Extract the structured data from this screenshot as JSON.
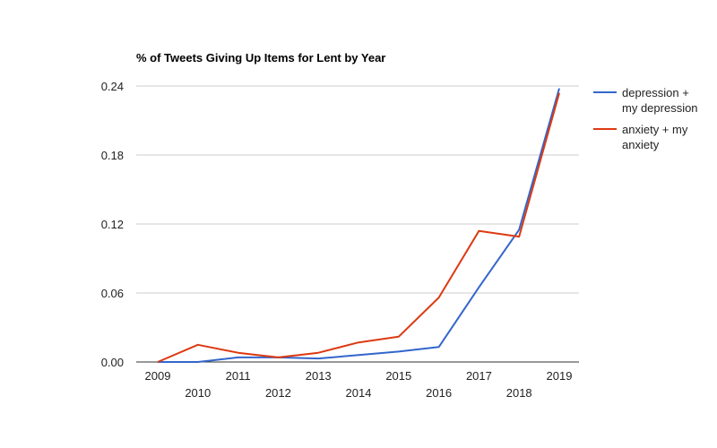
{
  "chart_data": {
    "type": "line",
    "title": "% of Tweets Giving Up Items for Lent by Year",
    "xlabel": "",
    "ylabel": "",
    "x": [
      "2009",
      "2010",
      "2011",
      "2012",
      "2013",
      "2014",
      "2015",
      "2016",
      "2017",
      "2018",
      "2019"
    ],
    "ylim": [
      0,
      0.24
    ],
    "yticks": [
      "0.00",
      "0.06",
      "0.12",
      "0.18",
      "0.24"
    ],
    "grid": true,
    "legend_position": "right",
    "series": [
      {
        "name": "depression + my depression",
        "legend_lines": [
          "depression +",
          "my depression"
        ],
        "color": "#3366cc",
        "values": [
          0.0,
          0.0,
          0.004,
          0.004,
          0.003,
          0.006,
          0.009,
          0.013,
          0.065,
          0.115,
          0.238
        ]
      },
      {
        "name": "anxiety + my anxiety",
        "legend_lines": [
          "anxiety + my",
          "anxiety"
        ],
        "color": "#dc3912",
        "values": [
          0.0,
          0.015,
          0.008,
          0.004,
          0.008,
          0.017,
          0.022,
          0.056,
          0.114,
          0.109,
          0.234
        ]
      }
    ]
  }
}
